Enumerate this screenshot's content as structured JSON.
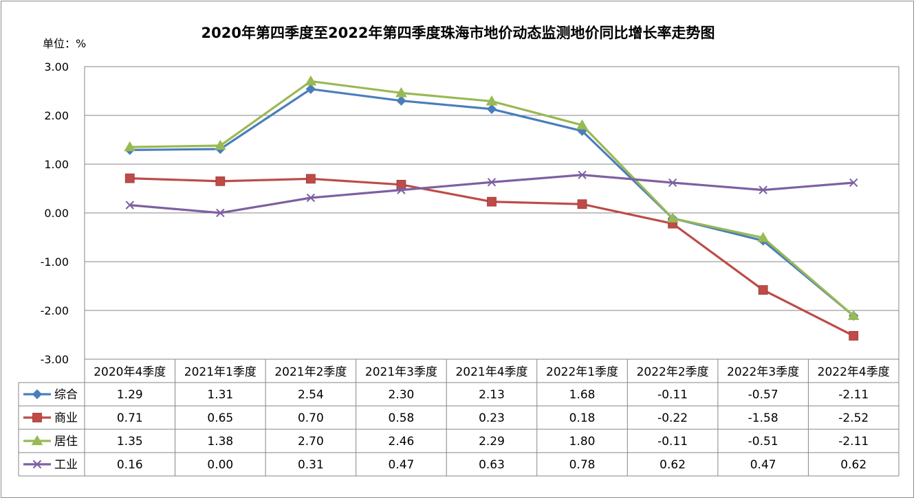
{
  "chart_data": {
    "type": "line",
    "title": "2020年第四季度至2022年第四季度珠海市地价动态监测地价同比增长率走势图",
    "unit_label": "单位：%",
    "categories": [
      "2020年4季度",
      "2021年1季度",
      "2021年2季度",
      "2021年3季度",
      "2021年4季度",
      "2022年1季度",
      "2022年2季度",
      "2022年3季度",
      "2022年4季度"
    ],
    "ylim": [
      -3,
      3
    ],
    "yticks": [
      "3.00",
      "2.00",
      "1.00",
      "0.00",
      "-1.00",
      "-2.00",
      "-3.00"
    ],
    "grid": true,
    "series": [
      {
        "name": "综合",
        "color": "#4a7ebb",
        "marker": "diamond",
        "values": [
          1.29,
          1.31,
          2.54,
          2.3,
          2.13,
          1.68,
          -0.11,
          -0.57,
          -2.11
        ],
        "labels": [
          "1.29",
          "1.31",
          "2.54",
          "2.30",
          "2.13",
          "1.68",
          "-0.11",
          "-0.57",
          "-2.11"
        ]
      },
      {
        "name": "商业",
        "color": "#be4b48",
        "marker": "square",
        "values": [
          0.71,
          0.65,
          0.7,
          0.58,
          0.23,
          0.18,
          -0.22,
          -1.58,
          -2.52
        ],
        "labels": [
          "0.71",
          "0.65",
          "0.70",
          "0.58",
          "0.23",
          "0.18",
          "-0.22",
          "-1.58",
          "-2.52"
        ]
      },
      {
        "name": "居住",
        "color": "#98b954",
        "marker": "triangle",
        "values": [
          1.35,
          1.38,
          2.7,
          2.46,
          2.29,
          1.8,
          -0.11,
          -0.51,
          -2.11
        ],
        "labels": [
          "1.35",
          "1.38",
          "2.70",
          "2.46",
          "2.29",
          "1.80",
          "-0.11",
          "-0.51",
          "-2.11"
        ]
      },
      {
        "name": "工业",
        "color": "#7d60a0",
        "marker": "x",
        "values": [
          0.16,
          0.0,
          0.31,
          0.47,
          0.63,
          0.78,
          0.62,
          0.47,
          0.62
        ],
        "labels": [
          "0.16",
          "0.00",
          "0.31",
          "0.47",
          "0.63",
          "0.78",
          "0.62",
          "0.47",
          "0.62"
        ]
      }
    ]
  }
}
